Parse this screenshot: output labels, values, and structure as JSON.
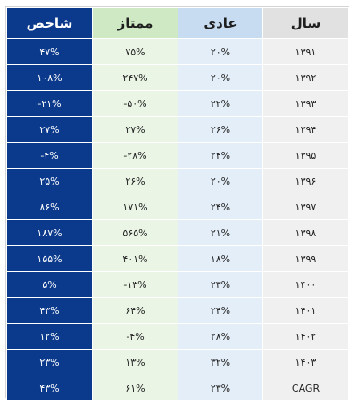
{
  "table": {
    "headers": {
      "index": "شاخص",
      "premium": "ممتاز",
      "normal": "عادی",
      "year": "سال"
    },
    "rows": [
      {
        "index": "۴۷%",
        "premium": "۷۵%",
        "normal": "۲۰%",
        "year": "۱۳۹۱"
      },
      {
        "index": "۱۰۸%",
        "premium": "۲۴۷%",
        "normal": "۲۰%",
        "year": "۱۳۹۲"
      },
      {
        "index": "-۲۱%",
        "premium": "-۵۰%",
        "normal": "۲۲%",
        "year": "۱۳۹۳"
      },
      {
        "index": "۲۷%",
        "premium": "۲۷%",
        "normal": "۲۶%",
        "year": "۱۳۹۴"
      },
      {
        "index": "-۴%",
        "premium": "-۲۸%",
        "normal": "۲۴%",
        "year": "۱۳۹۵"
      },
      {
        "index": "۲۵%",
        "premium": "۲۶%",
        "normal": "۲۰%",
        "year": "۱۳۹۶"
      },
      {
        "index": "۸۶%",
        "premium": "۱۷۱%",
        "normal": "۲۴%",
        "year": "۱۳۹۷"
      },
      {
        "index": "۱۸۷%",
        "premium": "۵۶۵%",
        "normal": "۲۱%",
        "year": "۱۳۹۸"
      },
      {
        "index": "۱۵۵%",
        "premium": "۴۰۱%",
        "normal": "۱۸%",
        "year": "۱۳۹۹"
      },
      {
        "index": "۵%",
        "premium": "-۱۳%",
        "normal": "۲۳%",
        "year": "۱۴۰۰"
      },
      {
        "index": "۴۳%",
        "premium": "۶۴%",
        "normal": "۲۴%",
        "year": "۱۴۰۱"
      },
      {
        "index": "۱۲%",
        "premium": "-۴%",
        "normal": "۲۸%",
        "year": "۱۴۰۲"
      },
      {
        "index": "۲۳%",
        "premium": "۱۳%",
        "normal": "۳۲%",
        "year": "۱۴۰۳"
      },
      {
        "index": "۴۳%",
        "premium": "۶۱%",
        "normal": "۲۳%",
        "year": "CAGR"
      }
    ]
  }
}
